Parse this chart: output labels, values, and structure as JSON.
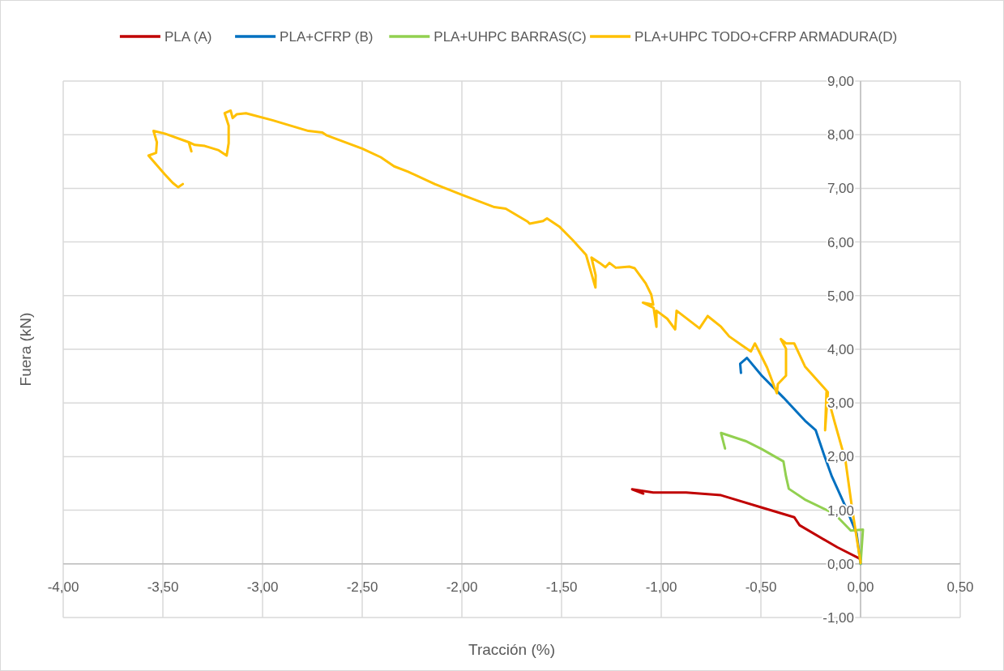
{
  "chart_data": {
    "type": "line",
    "xlabel": "Tracción (%)",
    "ylabel": "Fuera (kN)",
    "grid": true,
    "legend": "top",
    "xlim": [
      -4,
      0.5
    ],
    "ylim": [
      -1,
      9
    ],
    "xticks": [
      {
        "value": -4,
        "label": "-4,00"
      },
      {
        "value": -3.5,
        "label": "-3,50"
      },
      {
        "value": -3,
        "label": "-3,00"
      },
      {
        "value": -2.5,
        "label": "-2,50"
      },
      {
        "value": -2,
        "label": "-2,00"
      },
      {
        "value": -1.5,
        "label": "-1,50"
      },
      {
        "value": -1,
        "label": "-1,00"
      },
      {
        "value": -0.5,
        "label": "-0,50"
      },
      {
        "value": 0,
        "label": "0,00"
      },
      {
        "value": 0.5,
        "label": "0,50"
      }
    ],
    "yticks": [
      {
        "value": -1,
        "label": "-1,00"
      },
      {
        "value": 0,
        "label": "0,00"
      },
      {
        "value": 1,
        "label": "1,00"
      },
      {
        "value": 2,
        "label": "2,00"
      },
      {
        "value": 3,
        "label": "3,00"
      },
      {
        "value": 4,
        "label": "4,00"
      },
      {
        "value": 5,
        "label": "5,00"
      },
      {
        "value": 6,
        "label": "6,00"
      },
      {
        "value": 7,
        "label": "7,00"
      },
      {
        "value": 8,
        "label": "8,00"
      },
      {
        "value": 9,
        "label": "9,00"
      }
    ],
    "series": [
      {
        "name": "PLA (A)",
        "color": "#c00000",
        "x": [
          0,
          -0.117,
          -0.306,
          -0.333,
          -0.496,
          -0.7,
          -0.875,
          -1.04,
          -1.146,
          -1.09
        ],
        "values": [
          0.09,
          0.31,
          0.72,
          0.87,
          1.05,
          1.28,
          1.33,
          1.33,
          1.39,
          1.31
        ]
      },
      {
        "name": "PLA+CFRP (B)",
        "color": "#0070c0",
        "x": [
          0,
          -0.02,
          -0.077,
          -0.144,
          -0.184,
          -0.225,
          -0.279,
          -0.387,
          -0.496,
          -0.57,
          -0.604,
          -0.6
        ],
        "values": [
          0,
          0.57,
          1.08,
          1.63,
          2.04,
          2.49,
          2.67,
          3.1,
          3.51,
          3.84,
          3.73,
          3.56
        ]
      },
      {
        "name": "PLA+UHPC BARRAS(C)",
        "color": "#92d050",
        "x": [
          0,
          0.012,
          -0.049,
          -0.13,
          -0.28,
          -0.36,
          -0.374,
          -0.387,
          -0.496,
          -0.577,
          -0.7,
          -0.68
        ],
        "values": [
          0,
          0.64,
          0.62,
          0.93,
          1.2,
          1.4,
          1.63,
          1.91,
          2.14,
          2.29,
          2.44,
          2.15
        ]
      },
      {
        "name": "PLA+UHPC TODO+CFRP ARMADURA(D)",
        "color": "#ffc000",
        "x": [
          0,
          -0.042,
          -0.076,
          -0.13,
          -0.171,
          -0.178,
          -0.164,
          -0.279,
          -0.333,
          -0.374,
          -0.4,
          -0.374,
          -0.374,
          -0.415,
          -0.42,
          -0.469,
          -0.523,
          -0.53,
          -0.55,
          -0.59,
          -0.659,
          -0.7,
          -0.767,
          -0.808,
          -0.923,
          -0.93,
          -0.97,
          -1.024,
          -1.024,
          -1.038,
          -1.092,
          -1.04,
          -1.05,
          -1.078,
          -1.133,
          -1.16,
          -1.228,
          -1.26,
          -1.28,
          -1.309,
          -1.35,
          -1.329,
          -1.33,
          -1.377,
          -1.445,
          -1.512,
          -1.573,
          -1.593,
          -1.66,
          -1.67,
          -1.78,
          -1.837,
          -2.0,
          -2.136,
          -2.27,
          -2.34,
          -2.407,
          -2.5,
          -2.68,
          -2.7,
          -2.77,
          -2.95,
          -3.083,
          -3.13,
          -3.15,
          -3.16,
          -3.19,
          -3.17,
          -3.17,
          -3.18,
          -3.22,
          -3.29,
          -3.34,
          -3.37,
          -3.357,
          -3.37,
          -3.49,
          -3.547,
          -3.53,
          -3.534,
          -3.572,
          -3.49,
          -3.45,
          -3.423,
          -3.4
        ],
        "values": [
          0.02,
          1.02,
          1.93,
          2.64,
          3.2,
          2.49,
          3.2,
          3.68,
          4.11,
          4.11,
          4.19,
          4.01,
          3.51,
          3.35,
          3.18,
          3.66,
          4.06,
          4.11,
          3.96,
          4.06,
          4.24,
          4.42,
          4.62,
          4.39,
          4.72,
          4.37,
          4.57,
          4.72,
          4.42,
          4.77,
          4.87,
          4.83,
          5.02,
          5.23,
          5.51,
          5.54,
          5.52,
          5.61,
          5.53,
          5.61,
          5.71,
          5.38,
          5.15,
          5.76,
          6.04,
          6.29,
          6.44,
          6.39,
          6.34,
          6.38,
          6.62,
          6.65,
          6.88,
          7.08,
          7.31,
          7.41,
          7.58,
          7.74,
          7.99,
          8.04,
          8.07,
          8.27,
          8.4,
          8.38,
          8.31,
          8.45,
          8.4,
          8.17,
          7.84,
          7.61,
          7.71,
          7.79,
          7.81,
          7.86,
          7.69,
          7.86,
          8.02,
          8.07,
          7.86,
          7.66,
          7.61,
          7.26,
          7.1,
          7.02,
          7.08
        ]
      }
    ]
  }
}
